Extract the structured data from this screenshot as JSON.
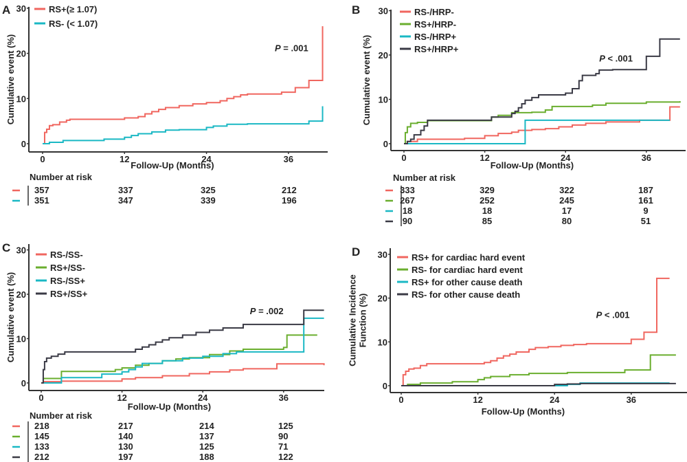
{
  "chart_data": [
    {
      "panel": "A",
      "type": "line",
      "step": true,
      "xlabel": "Follow-Up (Months)",
      "ylabel": "Cumulative event (%)",
      "xticks": [
        0,
        12,
        24,
        36
      ],
      "yticks": [
        0,
        10,
        20,
        30
      ],
      "xlim": [
        0,
        41
      ],
      "ylim": [
        0,
        30
      ],
      "legend_position": "top-left",
      "annotation": {
        "p_symbol": "P",
        "p_rest": " = .001",
        "x": 34,
        "y": 20.5
      },
      "risk_table_title": "Number at risk",
      "series": [
        {
          "name": "RS+(≥ 1.07)",
          "color": "#f0665f",
          "x": [
            0,
            0.3,
            0.6,
            1,
            1.5,
            2.5,
            3.5,
            4,
            11,
            12,
            14,
            15,
            16,
            17,
            18,
            20,
            22,
            24,
            26,
            27,
            28,
            29,
            30,
            33,
            35,
            37,
            39,
            41
          ],
          "y": [
            0,
            2.5,
            3.2,
            4,
            4.2,
            4.8,
            5.2,
            5.4,
            5.4,
            5.7,
            6,
            6.6,
            7.1,
            7.6,
            8,
            8.4,
            8.8,
            9.1,
            9.5,
            10,
            10.4,
            10.8,
            11,
            11,
            11.4,
            12.4,
            14,
            26
          ]
        },
        {
          "name": "RS- (< 1.07)",
          "color": "#1ab8c4",
          "x": [
            0,
            1,
            3,
            9,
            12,
            13,
            14,
            16,
            18,
            20,
            24,
            25,
            27,
            30,
            35,
            39,
            41
          ],
          "y": [
            0,
            0.3,
            0.7,
            1,
            1.4,
            1.8,
            2.2,
            2.6,
            3,
            3.1,
            3.6,
            3.9,
            4.3,
            4.4,
            4.4,
            5,
            8.3
          ]
        }
      ],
      "risk_table": {
        "times": [
          0,
          12,
          24,
          36
        ],
        "rows": [
          [
            357,
            337,
            325,
            212
          ],
          [
            351,
            347,
            339,
            196
          ]
        ]
      }
    },
    {
      "panel": "B",
      "type": "line",
      "step": true,
      "xlabel": "Follow-Up (Months)",
      "ylabel": "Cumulative event (%)",
      "xticks": [
        0,
        12,
        24,
        36
      ],
      "yticks": [
        0,
        10,
        20,
        30
      ],
      "xlim": [
        0,
        42
      ],
      "ylim": [
        0,
        30
      ],
      "legend_position": "top-left",
      "annotation": {
        "p_symbol": "P",
        "p_rest": " < .001",
        "x": 29,
        "y": 18.5
      },
      "risk_table_title": "Number at risk",
      "series": [
        {
          "name": "RS-/HRP-",
          "color": "#f0665f",
          "x": [
            0,
            0.5,
            2,
            9,
            12,
            14,
            16,
            17,
            19,
            21,
            23,
            25,
            27,
            30,
            35,
            39.5,
            41
          ],
          "y": [
            0,
            0.5,
            1,
            1.2,
            1.8,
            2.3,
            2.6,
            3,
            3.2,
            3.4,
            3.8,
            4.2,
            4.6,
            4.9,
            5.3,
            8.3,
            8.3
          ]
        },
        {
          "name": "RS+/HRP-",
          "color": "#6aae2e",
          "x": [
            0,
            0.2,
            0.5,
            1,
            2,
            3.5,
            12,
            13,
            14,
            16,
            19,
            21,
            22,
            28,
            30,
            36,
            41
          ],
          "y": [
            0,
            2.5,
            3.8,
            4.6,
            4.8,
            5.2,
            5.2,
            6,
            6.4,
            7,
            7.1,
            7.6,
            8.4,
            8.7,
            9.1,
            9.4,
            9.6
          ]
        },
        {
          "name": "RS-/HRP+",
          "color": "#1ab8c4",
          "x": [
            0,
            18,
            37,
            39.5
          ],
          "y": [
            0,
            5.3,
            5.3,
            5.3
          ]
        },
        {
          "name": "RS+/HRP+",
          "color": "#3a3a45",
          "x": [
            0,
            0.5,
            1,
            1.5,
            2.5,
            3,
            3.5,
            12.5,
            13,
            16,
            16.5,
            17,
            17.5,
            18,
            19,
            20,
            24,
            25,
            26,
            26.5,
            28.5,
            29,
            31,
            36,
            38,
            40,
            41
          ],
          "y": [
            0,
            0.5,
            1,
            2,
            3,
            4,
            5.3,
            5.3,
            6,
            6.8,
            7.3,
            8.1,
            9,
            9.8,
            10.4,
            11,
            11.4,
            12.4,
            14.2,
            15.4,
            15.8,
            16.6,
            16.7,
            19.7,
            23.6,
            23.6,
            23.6
          ]
        }
      ],
      "risk_table": {
        "times": [
          0,
          12,
          24,
          36
        ],
        "rows": [
          [
            333,
            329,
            322,
            187
          ],
          [
            267,
            252,
            245,
            161
          ],
          [
            18,
            18,
            17,
            9
          ],
          [
            90,
            85,
            80,
            51
          ]
        ]
      }
    },
    {
      "panel": "C",
      "type": "line",
      "step": true,
      "xlabel": "Follow-Up (Months)",
      "ylabel": "Cumulative event (%)",
      "xticks": [
        0,
        12,
        24,
        36
      ],
      "yticks": [
        0,
        10,
        20,
        30
      ],
      "xlim": [
        0,
        42
      ],
      "ylim": [
        0,
        30
      ],
      "legend_position": "top-left",
      "annotation": {
        "p_symbol": "P",
        "p_rest": " = .002",
        "x": 31,
        "y": 15.5
      },
      "risk_table_title": "Number at risk",
      "series": [
        {
          "name": "RS-/SS-",
          "color": "#f0665f",
          "x": [
            0,
            0.5,
            3,
            12,
            14,
            18,
            22,
            25,
            28,
            30,
            35,
            42
          ],
          "y": [
            0,
            0.3,
            0.4,
            0.9,
            1.2,
            1.6,
            2.1,
            2.5,
            2.9,
            3.2,
            4.3,
            4
          ]
        },
        {
          "name": "RS+/SS-",
          "color": "#6aae2e",
          "x": [
            0,
            0.3,
            3,
            11,
            12,
            14,
            16,
            18,
            20,
            22,
            25,
            28,
            30,
            36,
            36.5,
            41
          ],
          "y": [
            0,
            1,
            2.6,
            3,
            3.4,
            4,
            4.4,
            5,
            5.4,
            5.7,
            6.4,
            7.2,
            7.6,
            8,
            10.8,
            10.8
          ]
        },
        {
          "name": "RS-/SS+",
          "color": "#1ab8c4",
          "x": [
            0,
            3,
            9,
            12,
            13,
            14,
            15,
            18,
            21,
            24,
            27,
            29,
            39,
            42
          ],
          "y": [
            0,
            1.2,
            2,
            2.5,
            3,
            3.6,
            4.4,
            5,
            5.6,
            6,
            6.6,
            7,
            14.6,
            14.6
          ]
        },
        {
          "name": "RS+/SS+",
          "color": "#3a3a45",
          "x": [
            0,
            0.3,
            0.5,
            0.8,
            1.5,
            2.5,
            3.5,
            13,
            14,
            15,
            16,
            17,
            18,
            19,
            21,
            23,
            25,
            27,
            30,
            39,
            42
          ],
          "y": [
            0,
            3,
            4.8,
            5.6,
            6,
            6.5,
            7,
            7,
            7.6,
            8.1,
            8.6,
            9.2,
            9.7,
            10.2,
            10.8,
            11.4,
            11.9,
            12.4,
            13.2,
            16.4,
            16.4
          ]
        }
      ],
      "risk_table": {
        "times": [
          0,
          12,
          24,
          36
        ],
        "rows": [
          [
            218,
            217,
            214,
            125
          ],
          [
            145,
            140,
            137,
            90
          ],
          [
            133,
            130,
            125,
            71
          ],
          [
            212,
            197,
            188,
            122
          ]
        ]
      }
    },
    {
      "panel": "D",
      "type": "line",
      "step": true,
      "xlabel": "Follow-Up (Months)",
      "ylabel": "Cumulative Incidence\nFunction (%)",
      "xticks": [
        0,
        12,
        24,
        36
      ],
      "yticks": [
        0,
        10,
        20,
        30
      ],
      "xlim": [
        0,
        43
      ],
      "ylim": [
        0,
        30
      ],
      "legend_position": "top-left",
      "annotation": {
        "p_symbol": "P",
        "p_rest": " < .001",
        "x": 30.5,
        "y": 15.5
      },
      "series": [
        {
          "name": "RS+ for cardiac hard event",
          "color": "#f0665f",
          "x": [
            0,
            0.3,
            0.7,
            1.2,
            2,
            3,
            4,
            11,
            13,
            14,
            15,
            16,
            17,
            18,
            20,
            21,
            23,
            25,
            27,
            29,
            35,
            36,
            38,
            40,
            42
          ],
          "y": [
            0,
            2.5,
            3.3,
            3.8,
            4,
            4.6,
            5,
            5,
            5.3,
            5.7,
            6.3,
            6.8,
            7.2,
            7.7,
            8.3,
            8.7,
            8.9,
            9.2,
            9.4,
            9.6,
            9.6,
            10.6,
            12.2,
            24.5,
            24.5
          ]
        },
        {
          "name": "RS- for cardiac hard event",
          "color": "#6aae2e",
          "x": [
            0,
            1,
            3,
            8,
            12,
            13,
            14,
            17,
            20,
            26,
            35,
            39,
            43
          ],
          "y": [
            0,
            0.3,
            0.6,
            0.9,
            1.4,
            1.8,
            2.1,
            2.5,
            2.8,
            3,
            3.6,
            7,
            7
          ]
        },
        {
          "name": "RS+ for other cause death",
          "color": "#1ab8c4",
          "x": [
            0,
            14,
            23,
            26,
            28,
            42
          ],
          "y": [
            0,
            0,
            0,
            0.3,
            0.6,
            0.6
          ]
        },
        {
          "name": "RS- for other cause death",
          "color": "#3a3a45",
          "x": [
            0,
            22.5,
            24,
            26,
            28,
            43
          ],
          "y": [
            0,
            0,
            0.3,
            0.4,
            0.5,
            0.5
          ]
        }
      ]
    }
  ]
}
